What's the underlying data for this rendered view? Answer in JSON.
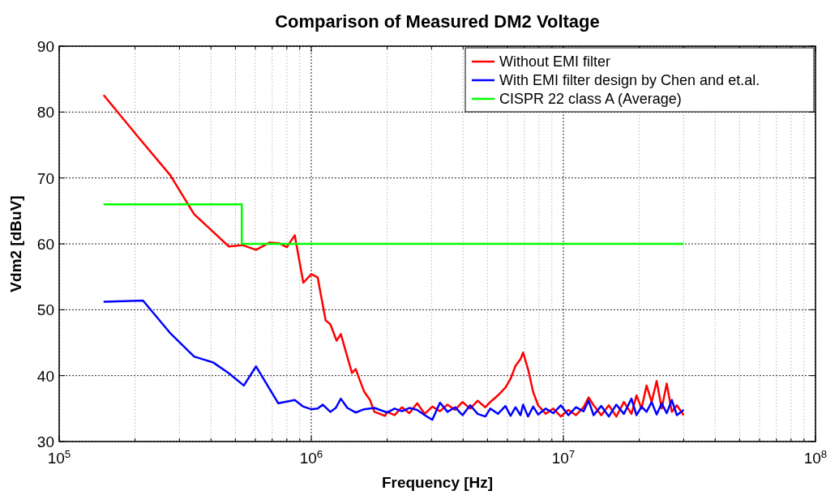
{
  "chart_data": {
    "type": "line",
    "title": "Comparison of Measured DM2 Voltage",
    "xlabel": "Frequency [Hz]",
    "ylabel": "Vdm2 [dBuV]",
    "log": "x",
    "grid": true,
    "legend": "top right",
    "line_style": "solid",
    "xlim": [
      100000,
      100000000
    ],
    "xticks": [
      {
        "value": 100000,
        "label": "10$^{5}$"
      },
      {
        "value": 1000000,
        "label": "10$^{6}$"
      },
      {
        "value": 10000000,
        "label": "10$^{7}$"
      },
      {
        "value": 100000000,
        "label": "10$^{8}$"
      }
    ],
    "ylim": [
      30,
      90
    ],
    "yticks": [
      30,
      40,
      50,
      60,
      70,
      80,
      90
    ],
    "series": [
      {
        "name": "Without EMI filter",
        "color": "#ff0000",
        "x": [
          150000,
          205000,
          276000,
          343000,
          471000,
          534000,
          604000,
          683000,
          745000,
          800000,
          860000,
          930000,
          1000000,
          1060000,
          1140000,
          1190000,
          1260000,
          1310000,
          1450000,
          1500000,
          1590000,
          1620000,
          1710000,
          1780000,
          1960000,
          2000000,
          2140000,
          2290000,
          2450000,
          2630000,
          2820000,
          3020000,
          3240000,
          3470000,
          3720000,
          3980000,
          4270000,
          4570000,
          4900000,
          5130000,
          5500000,
          5890000,
          6170000,
          6460000,
          6760000,
          6920000,
          7240000,
          7590000,
          7940000,
          8510000,
          9120000,
          9770000,
          10470000,
          11220000,
          12020000,
          12590000,
          13180000,
          14130000,
          15140000,
          16220000,
          17380000,
          18620000,
          19500000,
          20420000,
          21380000,
          22390000,
          23440000,
          24550000,
          25700000,
          26920000,
          28180000,
          30000000
        ],
        "values": [
          82.6,
          76.3,
          70.4,
          64.5,
          59.6,
          59.8,
          59.1,
          60.2,
          60.1,
          59.5,
          61.3,
          54.1,
          55.4,
          54.9,
          48.4,
          47.8,
          45.3,
          46.3,
          40.4,
          41.0,
          38.4,
          37.6,
          36.3,
          34.5,
          33.9,
          34.5,
          34.0,
          35.2,
          34.3,
          35.8,
          34.2,
          35.3,
          34.6,
          35.6,
          34.8,
          36.0,
          35.0,
          36.2,
          35.2,
          36.0,
          37.0,
          38.2,
          39.5,
          41.5,
          42.5,
          43.5,
          41.0,
          37.5,
          35.5,
          34.2,
          35.0,
          33.8,
          34.8,
          34.0,
          35.2,
          36.7,
          35.5,
          34.0,
          35.5,
          33.8,
          36.0,
          34.2,
          37.0,
          35.0,
          38.5,
          36.0,
          39.2,
          35.0,
          38.8,
          34.5,
          35.5,
          34.0
        ]
      },
      {
        "name": "With EMI filter design by Chen and et.al.",
        "color": "#0000ff",
        "x": [
          150000,
          215000,
          275000,
          343000,
          408000,
          470000,
          540000,
          604000,
          740000,
          860000,
          930000,
          1000000,
          1060000,
          1110000,
          1190000,
          1250000,
          1310000,
          1390000,
          1500000,
          1620000,
          1780000,
          2000000,
          2140000,
          2290000,
          2450000,
          2630000,
          2820000,
          3020000,
          3240000,
          3470000,
          3720000,
          3980000,
          4270000,
          4570000,
          4900000,
          5130000,
          5500000,
          5890000,
          6170000,
          6460000,
          6760000,
          6920000,
          7240000,
          7590000,
          7940000,
          8510000,
          9120000,
          9770000,
          10470000,
          11220000,
          12020000,
          12590000,
          13180000,
          14130000,
          15140000,
          16220000,
          17380000,
          18620000,
          19500000,
          20420000,
          21380000,
          22390000,
          23440000,
          24550000,
          25700000,
          26920000,
          28180000,
          30000000
        ],
        "values": [
          51.2,
          51.4,
          46.5,
          42.9,
          42.0,
          40.4,
          38.5,
          41.4,
          35.8,
          36.3,
          35.3,
          34.9,
          35.0,
          35.6,
          34.5,
          35.1,
          36.5,
          35.1,
          34.4,
          34.9,
          35.1,
          34.4,
          35.0,
          34.6,
          35.1,
          34.8,
          34.0,
          33.3,
          35.9,
          34.5,
          35.2,
          34.0,
          35.5,
          34.2,
          33.8,
          35.0,
          34.2,
          35.4,
          33.9,
          35.2,
          34.0,
          35.6,
          33.8,
          35.3,
          34.1,
          35.0,
          34.3,
          35.5,
          34.0,
          35.2,
          34.6,
          36.2,
          34.0,
          35.4,
          33.8,
          35.6,
          34.2,
          36.5,
          34.0,
          35.3,
          34.5,
          36.0,
          34.1,
          35.8,
          34.3,
          36.3,
          34.0,
          34.8
        ]
      },
      {
        "name": "CISPR 22 class A (Average)",
        "color": "#00ff00",
        "x": [
          150000,
          530000,
          530000,
          30000000
        ],
        "values": [
          66,
          66,
          60,
          60
        ]
      }
    ]
  }
}
